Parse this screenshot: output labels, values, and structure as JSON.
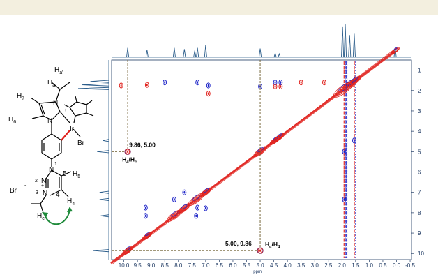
{
  "page": {
    "header_band_color": "#f3efdf"
  },
  "chart_data": {
    "type": "2D NMR contour plot (NOESY)",
    "xlabel": "ppm",
    "ylabel": "",
    "x_ticks": [
      "10.0",
      "9.5",
      "9.0",
      "8.5",
      "8.0",
      "7.5",
      "7.0",
      "6.5",
      "6.0",
      "5.5",
      "5.0",
      "4.5",
      "4.0",
      "3.5",
      "3.0",
      "2.5",
      "2.0",
      "1.5",
      "1.0",
      "0.5",
      "0.0",
      "-0.5"
    ],
    "y_ticks": [
      "1",
      "2",
      "3",
      "4",
      "5",
      "6",
      "7",
      "8",
      "9",
      "10"
    ],
    "xlim": [
      10.45,
      -0.55
    ],
    "ylim": [
      0.5,
      10.3
    ],
    "colors": {
      "positive": "#e0201b",
      "negative": "#1f26c8",
      "spectrum": "#2a5c8a",
      "guide": "#6b5a2a",
      "marker": "#8b2252",
      "axis": "#1f3a63"
    },
    "top_projection_peaks": [
      {
        "ppm": 9.86,
        "height": 0.28
      },
      {
        "ppm": 9.15,
        "height": 0.22
      },
      {
        "ppm": 8.15,
        "height": 0.28
      },
      {
        "ppm": 7.78,
        "height": 0.24
      },
      {
        "ppm": 7.4,
        "height": 0.2
      },
      {
        "ppm": 7.3,
        "height": 0.28
      },
      {
        "ppm": 7.0,
        "height": 0.36
      },
      {
        "ppm": 5.0,
        "height": 0.26
      },
      {
        "ppm": 4.45,
        "height": 0.12
      },
      {
        "ppm": 4.3,
        "height": 0.1
      },
      {
        "ppm": 1.98,
        "height": 0.92
      },
      {
        "ppm": 1.88,
        "height": 1.0
      },
      {
        "ppm": 1.72,
        "height": 0.66
      },
      {
        "ppm": 1.55,
        "height": 0.7
      },
      {
        "ppm": 0.05,
        "height": 0.3
      }
    ],
    "side_projection_peaks": [
      {
        "ppm": 1.72,
        "height": 0.88
      },
      {
        "ppm": 1.9,
        "height": 1.0
      },
      {
        "ppm": 1.55,
        "height": 0.6
      },
      {
        "ppm": 4.45,
        "height": 0.2
      },
      {
        "ppm": 5.0,
        "height": 0.38
      },
      {
        "ppm": 7.0,
        "height": 0.3
      },
      {
        "ppm": 7.35,
        "height": 0.3
      },
      {
        "ppm": 8.15,
        "height": 0.26
      },
      {
        "ppm": 9.86,
        "height": 0.5
      }
    ],
    "diagonal_peaks": [
      {
        "ppm": 9.86,
        "size": 1.0
      },
      {
        "ppm": 9.15,
        "size": 0.8
      },
      {
        "ppm": 8.15,
        "size": 1.4
      },
      {
        "ppm": 7.8,
        "size": 1.2
      },
      {
        "ppm": 7.35,
        "size": 1.5
      },
      {
        "ppm": 7.0,
        "size": 1.0
      },
      {
        "ppm": 5.0,
        "size": 1.2
      },
      {
        "ppm": 4.45,
        "size": 0.9
      },
      {
        "ppm": 4.3,
        "size": 0.9
      },
      {
        "ppm": 1.95,
        "size": 2.0
      },
      {
        "ppm": 1.72,
        "size": 1.6
      },
      {
        "ppm": 1.55,
        "size": 1.2
      },
      {
        "ppm": 0.05,
        "size": 0.6
      }
    ],
    "cross_peaks": [
      {
        "x": 9.86,
        "y": 5.0,
        "sign": "positive"
      },
      {
        "x": 5.0,
        "y": 9.86,
        "sign": "positive"
      },
      {
        "x": 9.15,
        "y": 1.72,
        "sign": "positive"
      },
      {
        "x": 8.15,
        "y": 7.35,
        "sign": "negative"
      },
      {
        "x": 7.35,
        "y": 8.15,
        "sign": "negative"
      },
      {
        "x": 7.78,
        "y": 7.0,
        "sign": "negative"
      },
      {
        "x": 7.0,
        "y": 7.78,
        "sign": "negative"
      },
      {
        "x": 7.3,
        "y": 7.75,
        "sign": "negative"
      },
      {
        "x": 8.5,
        "y": 1.6,
        "sign": "negative"
      },
      {
        "x": 7.3,
        "y": 1.6,
        "sign": "negative"
      },
      {
        "x": 6.9,
        "y": 1.75,
        "sign": "negative"
      },
      {
        "x": 6.9,
        "y": 2.15,
        "sign": "positive"
      },
      {
        "x": 5.0,
        "y": 1.8,
        "sign": "negative"
      },
      {
        "x": 4.45,
        "y": 1.6,
        "sign": "negative"
      },
      {
        "x": 4.45,
        "y": 1.8,
        "sign": "positive"
      },
      {
        "x": 4.25,
        "y": 1.6,
        "sign": "negative"
      },
      {
        "x": 4.25,
        "y": 1.8,
        "sign": "positive"
      },
      {
        "x": 3.5,
        "y": 1.6,
        "sign": "positive"
      },
      {
        "x": 2.65,
        "y": 1.6,
        "sign": "positive"
      },
      {
        "x": 10.1,
        "y": 1.75,
        "sign": "positive"
      },
      {
        "x": 9.2,
        "y": 7.75,
        "sign": "negative"
      },
      {
        "x": 9.2,
        "y": 8.15,
        "sign": "negative"
      },
      {
        "x": 1.92,
        "y": 7.35,
        "sign": "negative"
      },
      {
        "x": 1.92,
        "y": 5.0,
        "sign": "negative"
      },
      {
        "x": 1.55,
        "y": 4.45,
        "sign": "negative"
      }
    ],
    "vertical_streak_ppm": [
      1.92,
      1.85,
      1.55
    ],
    "annotations": [
      {
        "id": "a1",
        "x": 9.86,
        "y": 5.0,
        "value_text": "9.86, 5.00",
        "label_main": "H",
        "label_sub1": "4",
        "label_mid": "/H",
        "label_sub2": "c"
      },
      {
        "id": "a2",
        "x": 5.0,
        "y": 9.86,
        "value_text": "5.00, 9.86",
        "label_main": "H",
        "label_sub1": "c",
        "label_mid": "/H",
        "label_sub2": "4"
      }
    ]
  },
  "molecule": {
    "labels": {
      "h7": "H",
      "h7_sub": "7",
      "h6": "H",
      "h6_sub": "6",
      "ha_prime": "H",
      "ha_prime_sub": "a'",
      "ha": "H",
      "ha_sub": "a",
      "n_top": "N",
      "n_mid": "N",
      "ir": "Ir",
      "br_ir": "Br",
      "n1": "N",
      "n1_num": "1",
      "n2": "N",
      "n2_num": "2",
      "n3": "N",
      "n3_num": "3",
      "c5": "5",
      "h5": "H",
      "h5_sub": "5",
      "c4": "4",
      "br_minus": "Br",
      "minus": "-",
      "plus": "+",
      "h4": "H",
      "h4_sub": "4",
      "hc": "H",
      "hc_sub": "c"
    }
  }
}
